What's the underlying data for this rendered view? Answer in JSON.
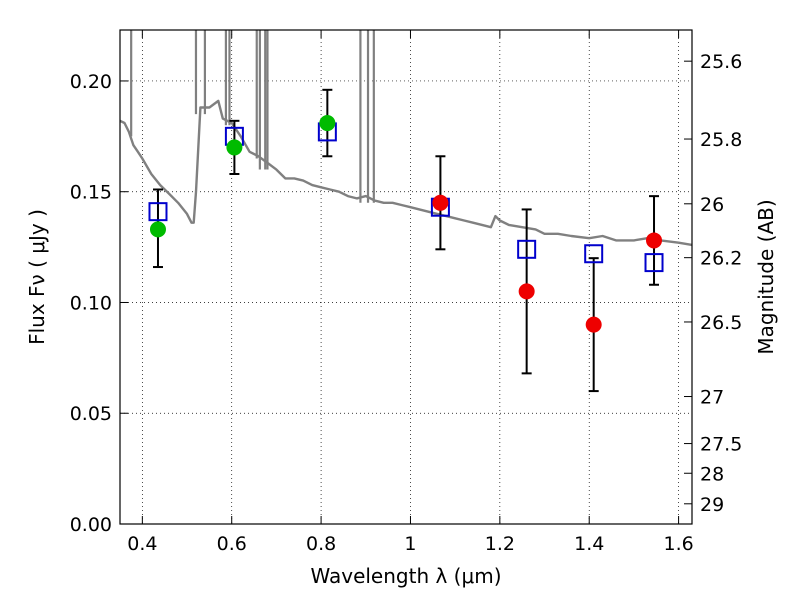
{
  "chart_data": {
    "type": "scatter",
    "xlabel": "Wavelength  λ (μm)",
    "ylabel": "Flux  Fν  ( μJy )",
    "y2label": "Magnitude (AB)",
    "xlim": [
      0.35,
      1.63
    ],
    "ylim": [
      0.0,
      0.223
    ],
    "x_ticks": [
      0.4,
      0.6,
      0.8,
      1.0,
      1.2,
      1.4,
      1.6
    ],
    "x_tick_labels": [
      "0.4",
      "0.6",
      "0.8",
      "1",
      "1.2",
      "1.4",
      "1.6"
    ],
    "y_ticks": [
      0.0,
      0.05,
      0.1,
      0.15,
      0.2
    ],
    "y_tick_labels": [
      "0.00",
      "0.05",
      "0.10",
      "0.15",
      "0.20"
    ],
    "mag_ticks": [
      25.6,
      25.8,
      26,
      26.2,
      26.5,
      27,
      27.5,
      28,
      29
    ],
    "mag_tick_labels": [
      "25.6",
      "25.8",
      "26",
      "26.2",
      "26.5",
      "27",
      "27.5",
      "28",
      "29"
    ],
    "grid": true,
    "colors": {
      "model": "#808080",
      "model_points": "#0000cc",
      "green_points": "#00bb00",
      "red_points": "#ee0000",
      "errorbar": "#000000"
    },
    "model_spectrum": {
      "x": [
        0.35,
        0.36,
        0.37,
        0.38,
        0.39,
        0.4,
        0.42,
        0.44,
        0.46,
        0.48,
        0.5,
        0.51,
        0.515,
        0.52,
        0.53,
        0.55,
        0.57,
        0.58,
        0.6,
        0.62,
        0.64,
        0.66,
        0.68,
        0.7,
        0.72,
        0.74,
        0.76,
        0.78,
        0.8,
        0.82,
        0.84,
        0.86,
        0.88,
        0.9,
        0.92,
        0.94,
        0.96,
        0.98,
        1.0,
        1.02,
        1.04,
        1.06,
        1.08,
        1.1,
        1.12,
        1.14,
        1.16,
        1.18,
        1.19,
        1.2,
        1.22,
        1.25,
        1.28,
        1.3,
        1.33,
        1.36,
        1.4,
        1.43,
        1.46,
        1.5,
        1.53,
        1.56,
        1.6,
        1.63
      ],
      "y": [
        0.182,
        0.181,
        0.177,
        0.171,
        0.168,
        0.165,
        0.158,
        0.153,
        0.149,
        0.145,
        0.14,
        0.136,
        0.136,
        0.15,
        0.188,
        0.188,
        0.191,
        0.183,
        0.181,
        0.175,
        0.168,
        0.166,
        0.163,
        0.16,
        0.156,
        0.156,
        0.155,
        0.153,
        0.152,
        0.151,
        0.15,
        0.148,
        0.147,
        0.148,
        0.146,
        0.145,
        0.145,
        0.144,
        0.143,
        0.142,
        0.141,
        0.14,
        0.139,
        0.138,
        0.137,
        0.136,
        0.135,
        0.134,
        0.139,
        0.137,
        0.135,
        0.134,
        0.133,
        0.131,
        0.131,
        0.13,
        0.129,
        0.13,
        0.128,
        0.128,
        0.129,
        0.128,
        0.127,
        0.126
      ]
    },
    "absorption_spikes": [
      {
        "x": 0.375,
        "top": 0.223,
        "bottom": 0.175
      },
      {
        "x": 0.52,
        "top": 0.223,
        "bottom": 0.185
      },
      {
        "x": 0.54,
        "top": 0.223,
        "bottom": 0.185
      },
      {
        "x": 0.587,
        "top": 0.223,
        "bottom": 0.18
      },
      {
        "x": 0.595,
        "top": 0.223,
        "bottom": 0.18
      },
      {
        "x": 0.656,
        "top": 0.223,
        "bottom": 0.165
      },
      {
        "x": 0.663,
        "top": 0.223,
        "bottom": 0.16
      },
      {
        "x": 0.675,
        "top": 0.223,
        "bottom": 0.16
      },
      {
        "x": 0.68,
        "top": 0.223,
        "bottom": 0.16
      },
      {
        "x": 0.888,
        "top": 0.223,
        "bottom": 0.145
      },
      {
        "x": 0.905,
        "top": 0.223,
        "bottom": 0.145
      },
      {
        "x": 0.918,
        "top": 0.223,
        "bottom": 0.145
      }
    ],
    "series": [
      {
        "role": "model_photometry",
        "marker": "square",
        "x": [
          0.435,
          0.606,
          0.814,
          1.067,
          1.26,
          1.41,
          1.545
        ],
        "y": [
          0.141,
          0.175,
          0.177,
          0.143,
          0.124,
          0.122,
          0.118
        ]
      },
      {
        "role": "observed_green",
        "marker": "circle",
        "x": [
          0.435,
          0.606,
          0.814
        ],
        "y": [
          0.133,
          0.17,
          0.181
        ],
        "err_low": [
          0.017,
          0.012,
          0.015
        ],
        "err_high": [
          0.018,
          0.012,
          0.015
        ]
      },
      {
        "role": "observed_red",
        "marker": "circle",
        "x": [
          1.067,
          1.26,
          1.41,
          1.545
        ],
        "y": [
          0.145,
          0.105,
          0.09,
          0.128
        ],
        "err_low": [
          0.021,
          0.037,
          0.03,
          0.02
        ],
        "err_high": [
          0.021,
          0.037,
          0.03,
          0.02
        ]
      }
    ]
  }
}
